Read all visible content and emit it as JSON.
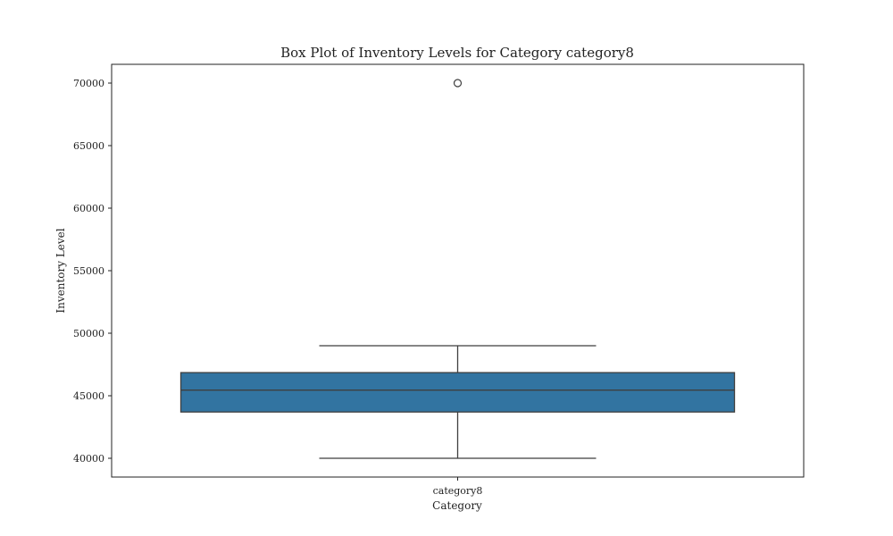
{
  "chart_data": {
    "type": "box",
    "title": "Box Plot of Inventory Levels for Category category8",
    "xlabel": "Category",
    "ylabel": "Inventory Level",
    "categories": [
      "category8"
    ],
    "boxes": [
      {
        "category": "category8",
        "whisker_low": 40000,
        "q1": 43700,
        "median": 45450,
        "q3": 46850,
        "whisker_high": 49000,
        "outliers": [
          70000
        ]
      }
    ],
    "ylim": [
      38500,
      71500
    ],
    "yticks": [
      40000,
      45000,
      50000,
      55000,
      60000,
      65000,
      70000
    ],
    "box_color": "#3274a1",
    "line_color": "#3f3f3f",
    "grid": false,
    "legend": "none"
  }
}
